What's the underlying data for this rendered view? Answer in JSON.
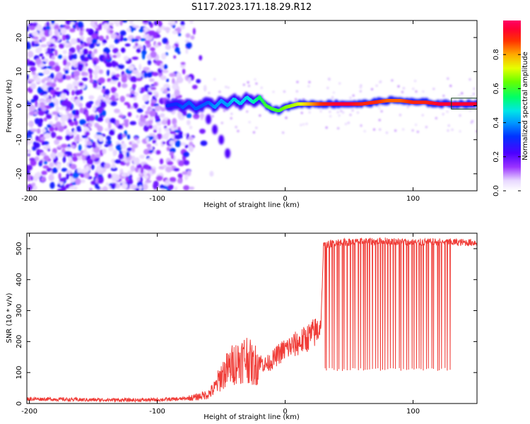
{
  "title": "S117.2023.171.18.29.R12",
  "chart_data": [
    {
      "type": "heatmap",
      "xlabel": "Height of straight line (km)",
      "ylabel": "Frequency (Hz)",
      "xlim": [
        -202,
        150
      ],
      "ylim": [
        -25,
        25
      ],
      "x_ticks": [
        -200,
        -100,
        0,
        100
      ],
      "y_ticks": [
        -20,
        -10,
        0,
        10,
        20
      ],
      "colorbar": {
        "label": "Normalized spectral amplitude",
        "range": [
          0,
          1
        ],
        "ticks": [
          "0.0",
          "0.2",
          "0.4",
          "0.6",
          "0.8"
        ],
        "colormap": "hsv-like rainbow: white-lavender (0) to purple, blue, cyan, green, yellow, red (1)"
      },
      "trace": {
        "x": [
          -92,
          -85,
          -80,
          -75,
          -70,
          -65,
          -60,
          -55,
          -50,
          -45,
          -40,
          -35,
          -30,
          -25,
          -20,
          -15,
          -10,
          -5,
          0,
          10,
          20,
          30,
          40,
          50,
          60,
          70,
          80,
          90,
          100,
          110,
          120,
          130,
          140,
          150
        ],
        "y": [
          0,
          0.5,
          -0.5,
          1,
          -1,
          0,
          1,
          -0.5,
          1.5,
          0,
          2,
          0.5,
          2.5,
          1,
          2.5,
          0,
          -1,
          -1.5,
          -0.5,
          0.5,
          0.5,
          0.5,
          0.5,
          0.5,
          0.5,
          1,
          1.5,
          1.5,
          1,
          1,
          0.5,
          0.5,
          0.5,
          0.5
        ],
        "amplitude": [
          0.3,
          0.3,
          0.35,
          0.35,
          0.35,
          0.35,
          0.35,
          0.4,
          0.4,
          0.4,
          0.45,
          0.45,
          0.45,
          0.5,
          0.55,
          0.6,
          0.6,
          0.6,
          0.65,
          0.7,
          0.8,
          0.9,
          0.95,
          0.95,
          0.9,
          0.9,
          0.85,
          0.85,
          0.9,
          0.9,
          0.95,
          0.95,
          0.95,
          0.95
        ]
      },
      "noise_region": {
        "x_range": [
          -202,
          -65
        ],
        "y_range": [
          -25,
          25
        ],
        "amplitude_range": [
          0.05,
          0.35
        ]
      },
      "secondary_branch": {
        "x": [
          -60,
          -55,
          -50,
          -45
        ],
        "y": [
          -4,
          -7,
          -10,
          -14
        ]
      },
      "grid": false
    },
    {
      "type": "line",
      "xlabel": "Height of straight line (km)",
      "ylabel": "SNR (10 * v/v)",
      "xlim": [
        -202,
        150
      ],
      "ylim": [
        0,
        550
      ],
      "x_ticks": [
        -200,
        -100,
        0,
        100
      ],
      "y_ticks": [
        0,
        100,
        200,
        300,
        400,
        500
      ],
      "color": "#f03c37",
      "series": [
        {
          "x": [
            -202,
            -180,
            -160,
            -140,
            -120,
            -100,
            -80,
            -70,
            -60,
            -55,
            -50,
            -45,
            -40,
            -35,
            -30,
            -25,
            -20,
            -15,
            -10,
            -5,
            0,
            5,
            10,
            15,
            20,
            25,
            28,
            30,
            40,
            60,
            80,
            100,
            120,
            140,
            150
          ],
          "y": [
            15,
            14,
            12,
            12,
            11,
            12,
            15,
            20,
            30,
            50,
            90,
            110,
            130,
            140,
            150,
            120,
            135,
            125,
            140,
            160,
            175,
            185,
            195,
            205,
            220,
            235,
            260,
            510,
            520,
            522,
            525,
            520,
            522,
            520,
            520
          ]
        }
      ],
      "dropouts": {
        "x_range": [
          30,
          130
        ],
        "count": 50,
        "floor_values": [
          105,
          115
        ]
      },
      "grid": false
    }
  ]
}
